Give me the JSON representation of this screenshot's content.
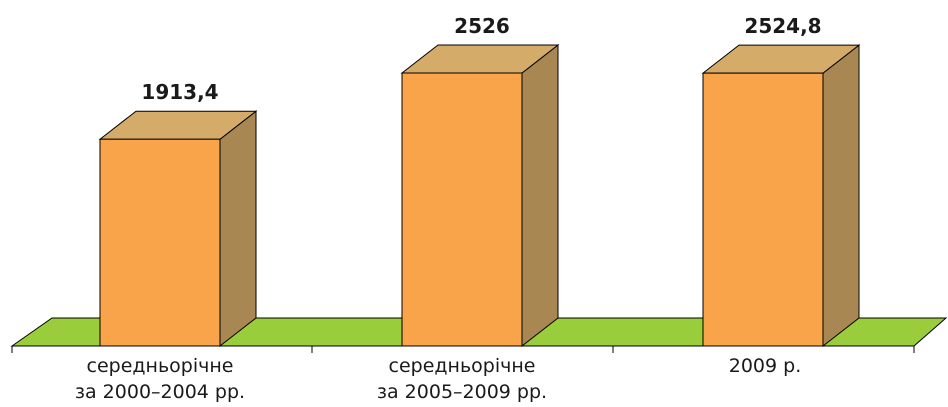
{
  "chart_data": {
    "type": "bar",
    "categories": [
      [
        "середньорічне",
        "за 2000–2004 рр."
      ],
      [
        "середньорічне",
        "за 2005–2009 рр."
      ],
      [
        "2009 р."
      ]
    ],
    "values": [
      1913.4,
      2526,
      2524.8
    ],
    "value_labels": [
      "1913,4",
      "2526",
      "2524,8"
    ],
    "title": "",
    "xlabel": "",
    "ylabel": "",
    "ylim": [
      0,
      2526
    ],
    "grid": false,
    "legend": "none",
    "style": "3d-column",
    "colors": {
      "bar_front": "#F9A44A",
      "bar_top": "#D5AB6A",
      "bar_side": "#A88752",
      "floor": "#9ACD3C",
      "outline": "#000000"
    }
  }
}
